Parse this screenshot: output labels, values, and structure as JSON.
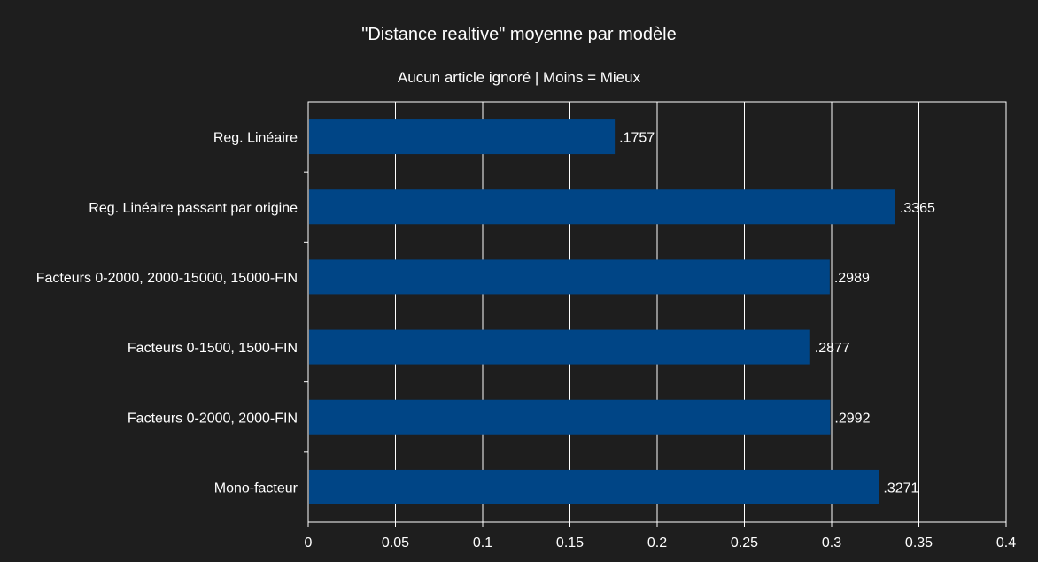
{
  "chart_data": {
    "type": "bar",
    "orientation": "horizontal",
    "title": "\"Distance realtive\" moyenne par modèle",
    "subtitle": "Aucun article ignoré | Moins = Mieux",
    "categories": [
      "Reg. Linéaire",
      "Reg. Linéaire passant par origine",
      "Facteurs 0-2000, 2000-15000, 15000-FIN",
      "Facteurs 0-1500, 1500-FIN",
      "Facteurs 0-2000, 2000-FIN",
      "Mono-facteur"
    ],
    "values": [
      0.1757,
      0.3365,
      0.2989,
      0.2877,
      0.2992,
      0.3271
    ],
    "value_labels": [
      ".1757",
      ".3365",
      ".2989",
      ".2877",
      ".2992",
      ".3271"
    ],
    "xlim": [
      0,
      0.4
    ],
    "xticks": [
      0,
      0.05,
      0.1,
      0.15,
      0.2,
      0.25,
      0.3,
      0.35,
      0.4
    ],
    "xtick_labels": [
      "0",
      "0.05",
      "0.1",
      "0.15",
      "0.2",
      "0.25",
      "0.3",
      "0.35",
      "0.4"
    ],
    "grid": true,
    "legend": "none",
    "colors": {
      "background": "#1e1e1e",
      "bar": "#004586",
      "text": "#ffffff",
      "grid": "#ffffff"
    }
  }
}
